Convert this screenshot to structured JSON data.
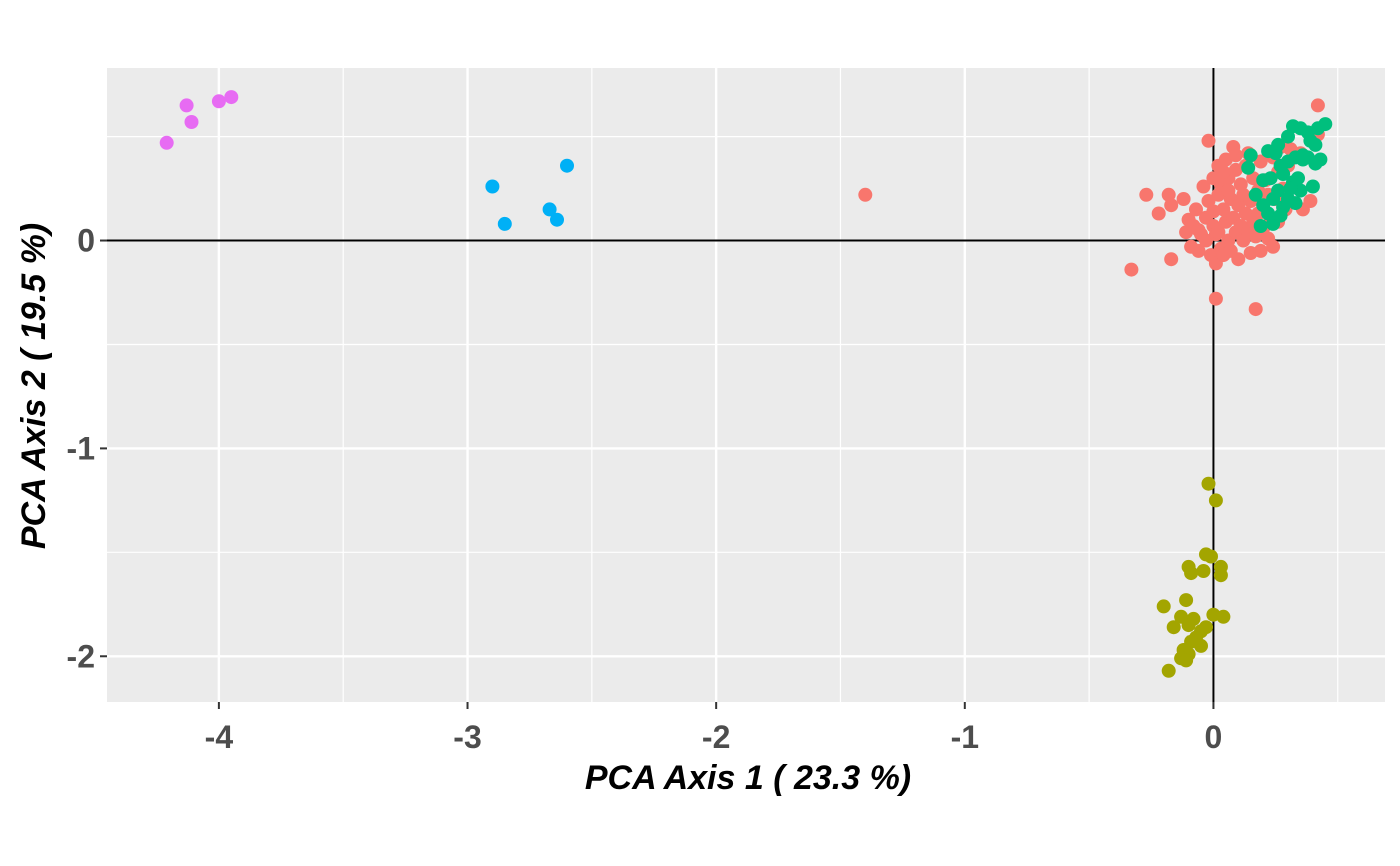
{
  "chart_data": {
    "type": "scatter",
    "xlabel": "PCA Axis 1 ( 23.3 %)",
    "ylabel": "PCA Axis 2 ( 19.5 %)",
    "xlim": [
      -4.45,
      0.69
    ],
    "ylim": [
      -2.22,
      0.83
    ],
    "x_ticks": [
      -4,
      -3,
      -2,
      -1,
      0
    ],
    "y_ticks": [
      -2,
      -1,
      0
    ],
    "x_tick_labels": [
      "-4",
      "-3",
      "-2",
      "-1",
      "0"
    ],
    "y_tick_labels": [
      "-2",
      "-1",
      "0"
    ],
    "grid": true,
    "reference_lines": {
      "x": 0,
      "y": 0
    },
    "panel_color": "#ebebeb",
    "series": [
      {
        "color": "#f8766d",
        "points": [
          [
            -1.4,
            0.22
          ],
          [
            -0.33,
            -0.14
          ],
          [
            -0.27,
            0.22
          ],
          [
            -0.22,
            0.13
          ],
          [
            -0.18,
            0.22
          ],
          [
            -0.17,
            0.17
          ],
          [
            -0.17,
            -0.09
          ],
          [
            -0.12,
            0.2
          ],
          [
            -0.11,
            0.04
          ],
          [
            -0.1,
            0.1
          ],
          [
            -0.09,
            -0.03
          ],
          [
            -0.08,
            0.07
          ],
          [
            -0.07,
            0.15
          ],
          [
            -0.06,
            -0.05
          ],
          [
            -0.05,
            0.03
          ],
          [
            -0.04,
            0.26
          ],
          [
            -0.03,
            0.11
          ],
          [
            -0.03,
            0.0
          ],
          [
            -0.02,
            0.48
          ],
          [
            -0.02,
            0.19
          ],
          [
            -0.01,
            -0.07
          ],
          [
            0.0,
            0.3
          ],
          [
            0.0,
            0.14
          ],
          [
            0.0,
            0.07
          ],
          [
            0.01,
            -0.11
          ],
          [
            0.01,
            0.03
          ],
          [
            0.02,
            0.36
          ],
          [
            0.02,
            0.22
          ],
          [
            0.02,
            0.04
          ],
          [
            0.03,
            0.27
          ],
          [
            0.03,
            -0.04
          ],
          [
            0.04,
            0.15
          ],
          [
            0.04,
            -0.07
          ],
          [
            0.05,
            0.39
          ],
          [
            0.05,
            0.09
          ],
          [
            0.06,
            0.0
          ],
          [
            0.06,
            0.3
          ],
          [
            0.07,
            0.2
          ],
          [
            0.07,
            -0.05
          ],
          [
            0.08,
            0.45
          ],
          [
            0.08,
            0.11
          ],
          [
            0.09,
            0.34
          ],
          [
            0.09,
            0.04
          ],
          [
            0.1,
            0.17
          ],
          [
            0.1,
            -0.09
          ],
          [
            0.11,
            0.27
          ],
          [
            0.11,
            0.07
          ],
          [
            0.12,
            0.0
          ],
          [
            0.12,
            0.22
          ],
          [
            0.13,
            0.36
          ],
          [
            0.13,
            0.13
          ],
          [
            0.14,
            0.42
          ],
          [
            0.14,
            0.04
          ],
          [
            0.15,
            -0.06
          ],
          [
            0.15,
            0.19
          ],
          [
            0.16,
            0.3
          ],
          [
            0.16,
            0.09
          ],
          [
            0.17,
            -0.33
          ],
          [
            0.17,
            0.02
          ],
          [
            0.18,
            0.24
          ],
          [
            0.18,
            0.13
          ],
          [
            0.19,
            0.38
          ],
          [
            0.19,
            -0.05
          ],
          [
            0.2,
            0.17
          ],
          [
            0.2,
            0.06
          ],
          [
            0.21,
            0.29
          ],
          [
            0.22,
            0.22
          ],
          [
            0.22,
            0.01
          ],
          [
            0.23,
            0.11
          ],
          [
            0.24,
            0.4
          ],
          [
            0.24,
            -0.03
          ],
          [
            0.25,
            0.2
          ],
          [
            0.26,
            0.33
          ],
          [
            0.26,
            0.09
          ],
          [
            0.27,
            0.45
          ],
          [
            0.28,
            0.25
          ],
          [
            0.29,
            0.15
          ],
          [
            0.3,
            0.36
          ],
          [
            0.31,
            0.44
          ],
          [
            0.33,
            0.27
          ],
          [
            0.35,
            0.42
          ],
          [
            0.36,
            0.15
          ],
          [
            0.39,
            0.19
          ],
          [
            0.42,
            0.51
          ],
          [
            0.42,
            0.65
          ],
          [
            0.01,
            -0.28
          ],
          [
            0.06,
            0.24
          ],
          [
            0.04,
            0.33
          ],
          [
            -0.06,
            0.05
          ],
          [
            0.09,
            0.41
          ]
        ]
      },
      {
        "color": "#a3a500",
        "points": [
          [
            -0.02,
            -1.17
          ],
          [
            0.01,
            -1.25
          ],
          [
            -0.03,
            -1.51
          ],
          [
            -0.01,
            -1.52
          ],
          [
            -0.1,
            -1.57
          ],
          [
            0.03,
            -1.57
          ],
          [
            -0.09,
            -1.6
          ],
          [
            -0.04,
            -1.59
          ],
          [
            0.03,
            -1.61
          ],
          [
            -0.11,
            -1.73
          ],
          [
            -0.2,
            -1.76
          ],
          [
            0.0,
            -1.8
          ],
          [
            0.04,
            -1.81
          ],
          [
            -0.13,
            -1.81
          ],
          [
            -0.08,
            -1.82
          ],
          [
            -0.1,
            -1.85
          ],
          [
            -0.16,
            -1.86
          ],
          [
            -0.03,
            -1.86
          ],
          [
            -0.05,
            -1.88
          ],
          [
            -0.07,
            -1.91
          ],
          [
            -0.09,
            -1.93
          ],
          [
            -0.05,
            -1.95
          ],
          [
            -0.12,
            -1.97
          ],
          [
            -0.1,
            -1.99
          ],
          [
            -0.13,
            -2.01
          ],
          [
            -0.11,
            -2.02
          ],
          [
            -0.18,
            -2.07
          ]
        ]
      },
      {
        "color": "#00bf7d",
        "points": [
          [
            0.32,
            0.55
          ],
          [
            0.35,
            0.54
          ],
          [
            0.38,
            0.52
          ],
          [
            0.42,
            0.54
          ],
          [
            0.45,
            0.56
          ],
          [
            0.3,
            0.5
          ],
          [
            0.39,
            0.48
          ],
          [
            0.41,
            0.46
          ],
          [
            0.33,
            0.4
          ],
          [
            0.36,
            0.41
          ],
          [
            0.38,
            0.4
          ],
          [
            0.43,
            0.39
          ],
          [
            0.41,
            0.37
          ],
          [
            0.3,
            0.38
          ],
          [
            0.25,
            0.42
          ],
          [
            0.15,
            0.41
          ],
          [
            0.22,
            0.43
          ],
          [
            0.27,
            0.36
          ],
          [
            0.2,
            0.29
          ],
          [
            0.23,
            0.3
          ],
          [
            0.28,
            0.32
          ],
          [
            0.32,
            0.28
          ],
          [
            0.35,
            0.24
          ],
          [
            0.4,
            0.26
          ],
          [
            0.33,
            0.18
          ],
          [
            0.24,
            0.2
          ],
          [
            0.17,
            0.22
          ],
          [
            0.22,
            0.13
          ],
          [
            0.28,
            0.16
          ],
          [
            0.24,
            0.08
          ],
          [
            0.19,
            0.07
          ],
          [
            0.27,
            0.12
          ],
          [
            0.3,
            0.2
          ],
          [
            0.36,
            0.39
          ],
          [
            0.26,
            0.46
          ],
          [
            0.14,
            0.35
          ],
          [
            0.2,
            0.17
          ],
          [
            0.31,
            0.25
          ],
          [
            0.34,
            0.3
          ],
          [
            0.26,
            0.24
          ]
        ]
      },
      {
        "color": "#00b0f6",
        "points": [
          [
            -2.6,
            0.36
          ],
          [
            -2.9,
            0.26
          ],
          [
            -2.67,
            0.15
          ],
          [
            -2.85,
            0.08
          ],
          [
            -2.64,
            0.1
          ]
        ]
      },
      {
        "color": "#e76bf3",
        "points": [
          [
            -3.95,
            0.69
          ],
          [
            -4.0,
            0.67
          ],
          [
            -4.13,
            0.65
          ],
          [
            -4.11,
            0.57
          ],
          [
            -4.21,
            0.47
          ]
        ]
      }
    ]
  }
}
